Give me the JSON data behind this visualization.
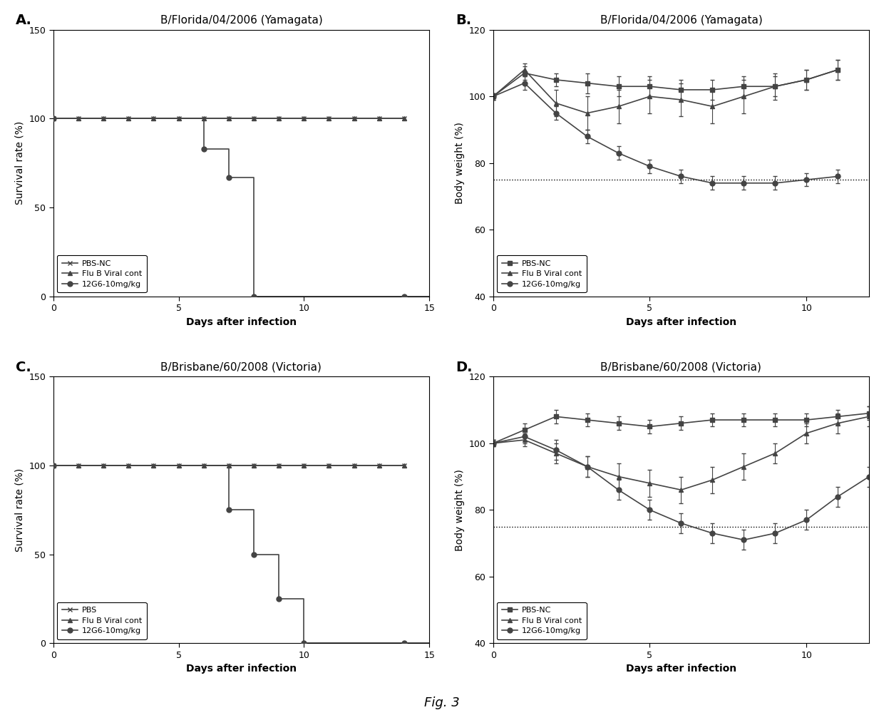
{
  "fig_title": "Fig. 3",
  "panel_A": {
    "title": "B/Florida/04/2006 (Yamagata)",
    "xlabel": "Days after infection",
    "ylabel": "Survival rate (%)",
    "ylim": [
      0,
      150
    ],
    "xlim": [
      0,
      15
    ],
    "yticks": [
      0,
      50,
      100,
      150
    ],
    "xticks": [
      0,
      5,
      10,
      15
    ],
    "series": [
      {
        "label": "PBS-NC",
        "x": [
          0,
          1,
          2,
          3,
          4,
          5,
          6,
          7,
          8,
          9,
          10,
          11,
          12,
          13,
          14
        ],
        "y": [
          100,
          100,
          100,
          100,
          100,
          100,
          100,
          100,
          100,
          100,
          100,
          100,
          100,
          100,
          100
        ],
        "marker": "x",
        "color": "#444444",
        "step": false,
        "yerr": null
      },
      {
        "label": "Flu B Viral cont",
        "x": [
          0,
          1,
          2,
          3,
          4,
          5,
          6,
          7,
          8,
          9,
          10,
          11,
          12,
          13,
          14
        ],
        "y": [
          100,
          100,
          100,
          100,
          100,
          100,
          100,
          100,
          100,
          100,
          100,
          100,
          100,
          100,
          100
        ],
        "marker": "^",
        "color": "#444444",
        "step": false,
        "yerr": null
      },
      {
        "label": "12G6-10mg/kg",
        "x": [
          0,
          6,
          7,
          8,
          14
        ],
        "y": [
          100,
          83,
          67,
          0,
          0
        ],
        "marker": "o",
        "color": "#444444",
        "step": true,
        "yerr": null
      }
    ]
  },
  "panel_B": {
    "title": "B/Florida/04/2006 (Yamagata)",
    "xlabel": "Days after infection",
    "ylabel": "Body weight (%)",
    "ylim": [
      40,
      120
    ],
    "xlim": [
      0,
      12
    ],
    "yticks": [
      40,
      60,
      80,
      100,
      120
    ],
    "xticks": [
      0,
      5,
      10
    ],
    "hline": 75,
    "series": [
      {
        "label": "PBS-NC",
        "x": [
          0,
          1,
          2,
          3,
          4,
          5,
          6,
          7,
          8,
          9,
          10,
          11
        ],
        "y": [
          100,
          107,
          105,
          104,
          103,
          103,
          102,
          102,
          103,
          103,
          105,
          108
        ],
        "yerr": [
          1,
          2,
          2,
          3,
          3,
          3,
          3,
          3,
          3,
          3,
          3,
          3
        ],
        "marker": "s",
        "color": "#444444"
      },
      {
        "label": "Flu B Viral cont",
        "x": [
          0,
          1,
          2,
          3,
          4,
          5,
          6,
          7,
          8,
          9,
          10,
          11
        ],
        "y": [
          100,
          108,
          98,
          95,
          97,
          100,
          99,
          97,
          100,
          103,
          105,
          108
        ],
        "yerr": [
          1,
          2,
          4,
          5,
          5,
          5,
          5,
          5,
          5,
          4,
          3,
          3
        ],
        "marker": "^",
        "color": "#444444"
      },
      {
        "label": "12G6-10mg/kg",
        "x": [
          0,
          1,
          2,
          3,
          4,
          5,
          6,
          7,
          8,
          9,
          10,
          11
        ],
        "y": [
          100,
          104,
          95,
          88,
          83,
          79,
          76,
          74,
          74,
          74,
          75,
          76
        ],
        "yerr": [
          1,
          2,
          2,
          2,
          2,
          2,
          2,
          2,
          2,
          2,
          2,
          2
        ],
        "marker": "o",
        "color": "#444444"
      }
    ]
  },
  "panel_C": {
    "title": "B/Brisbane/60/2008 (Victoria)",
    "xlabel": "Days after infection",
    "ylabel": "Survival rate (%)",
    "ylim": [
      0,
      150
    ],
    "xlim": [
      0,
      15
    ],
    "yticks": [
      0,
      50,
      100,
      150
    ],
    "xticks": [
      0,
      5,
      10,
      15
    ],
    "series": [
      {
        "label": "PBS",
        "x": [
          0,
          1,
          2,
          3,
          4,
          5,
          6,
          7,
          8,
          9,
          10,
          11,
          12,
          13,
          14
        ],
        "y": [
          100,
          100,
          100,
          100,
          100,
          100,
          100,
          100,
          100,
          100,
          100,
          100,
          100,
          100,
          100
        ],
        "marker": "x",
        "color": "#444444",
        "step": false,
        "yerr": null
      },
      {
        "label": "Flu B Viral cont",
        "x": [
          0,
          1,
          2,
          3,
          4,
          5,
          6,
          7,
          8,
          9,
          10,
          11,
          12,
          13,
          14
        ],
        "y": [
          100,
          100,
          100,
          100,
          100,
          100,
          100,
          100,
          100,
          100,
          100,
          100,
          100,
          100,
          100
        ],
        "marker": "^",
        "color": "#444444",
        "step": false,
        "yerr": null
      },
      {
        "label": "12G6-10mg/kg",
        "x": [
          0,
          7,
          8,
          9,
          10,
          14
        ],
        "y": [
          100,
          75,
          50,
          25,
          0,
          0
        ],
        "marker": "o",
        "color": "#444444",
        "step": true,
        "yerr": null
      }
    ]
  },
  "panel_D": {
    "title": "B/Brisbane/60/2008 (Victoria)",
    "xlabel": "Days after infection",
    "ylabel": "Body weight (%)",
    "ylim": [
      40,
      120
    ],
    "xlim": [
      0,
      12
    ],
    "yticks": [
      40,
      60,
      80,
      100,
      120
    ],
    "xticks": [
      0,
      5,
      10
    ],
    "hline": 75,
    "series": [
      {
        "label": "PBS-NC",
        "x": [
          0,
          1,
          2,
          3,
          4,
          5,
          6,
          7,
          8,
          9,
          10,
          11,
          12
        ],
        "y": [
          100,
          104,
          108,
          107,
          106,
          105,
          106,
          107,
          107,
          107,
          107,
          108,
          109
        ],
        "yerr": [
          1,
          2,
          2,
          2,
          2,
          2,
          2,
          2,
          2,
          2,
          2,
          2,
          2
        ],
        "marker": "s",
        "color": "#444444"
      },
      {
        "label": "Flu B Viral cont",
        "x": [
          0,
          1,
          2,
          3,
          4,
          5,
          6,
          7,
          8,
          9,
          10,
          11,
          12
        ],
        "y": [
          100,
          101,
          97,
          93,
          90,
          88,
          86,
          89,
          93,
          97,
          103,
          106,
          108
        ],
        "yerr": [
          1,
          2,
          3,
          3,
          4,
          4,
          4,
          4,
          4,
          3,
          3,
          3,
          3
        ],
        "marker": "^",
        "color": "#444444"
      },
      {
        "label": "12G6-10mg/kg",
        "x": [
          0,
          1,
          2,
          3,
          4,
          5,
          6,
          7,
          8,
          9,
          10,
          11,
          12
        ],
        "y": [
          100,
          102,
          98,
          93,
          86,
          80,
          76,
          73,
          71,
          73,
          77,
          84,
          90
        ],
        "yerr": [
          1,
          2,
          3,
          3,
          3,
          3,
          3,
          3,
          3,
          3,
          3,
          3,
          3
        ],
        "marker": "o",
        "color": "#444444"
      }
    ]
  }
}
